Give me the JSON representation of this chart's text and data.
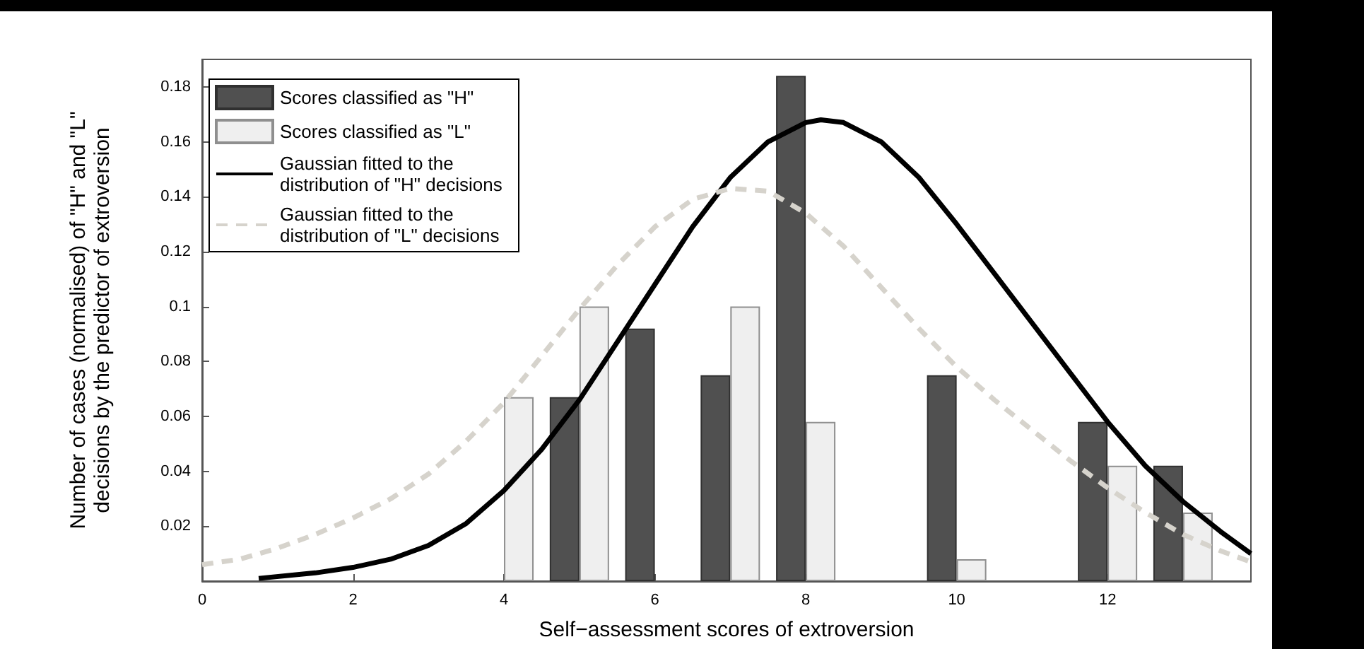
{
  "chart_data": {
    "type": "bar",
    "xlabel": "Self−assessment scores of extroversion",
    "ylabel": "Number of cases (normalised) of \"H\" and \"L\" decisions by the predictor of extroversion",
    "xlim": [
      0,
      13.9
    ],
    "xticks": [
      0,
      2,
      4,
      6,
      8,
      10,
      12
    ],
    "ylim": [
      0,
      0.19
    ],
    "yticks": [
      0.02,
      0.04,
      0.06,
      0.08,
      0.1,
      0.12,
      0.14,
      0.16,
      0.18
    ],
    "grid": false,
    "legend": "top left",
    "marker": "none",
    "series": [
      {
        "name": "Scores classified as \"H\"",
        "color": "#505050",
        "x": [
          5,
          6,
          7,
          8,
          10,
          12,
          13
        ],
        "values": [
          0.067,
          0.092,
          0.075,
          0.184,
          0.075,
          0.058,
          0.042
        ]
      },
      {
        "name": "Scores classified as \"L\"",
        "color": "#efefef",
        "x": [
          4,
          5,
          7,
          8,
          10,
          12,
          13
        ],
        "values": [
          0.067,
          0.1,
          0.1,
          0.058,
          0.008,
          0.042,
          0.025
        ]
      },
      {
        "name": "Gaussian fitted to the distribution of \"H\" decisions",
        "type": "line",
        "color": "#000000",
        "line_style": "solid",
        "x": [
          0.75,
          1.5,
          2,
          2.5,
          3,
          3.5,
          4,
          4.5,
          5,
          5.5,
          6,
          6.5,
          7,
          7.5,
          8,
          8.2,
          8.5,
          9,
          9.5,
          10,
          10.5,
          11,
          11.5,
          12,
          12.5,
          13,
          13.5,
          13.9
        ],
        "values": [
          0.001,
          0.003,
          0.005,
          0.008,
          0.013,
          0.021,
          0.033,
          0.048,
          0.066,
          0.087,
          0.108,
          0.129,
          0.147,
          0.16,
          0.167,
          0.168,
          0.167,
          0.16,
          0.147,
          0.13,
          0.112,
          0.094,
          0.076,
          0.058,
          0.042,
          0.029,
          0.018,
          0.01
        ]
      },
      {
        "name": "Gaussian fitted to the distribution of \"L\" decisions",
        "type": "line",
        "color": "#d6d3cc",
        "line_style": "dashed",
        "x": [
          0,
          0.5,
          1,
          1.5,
          2,
          2.5,
          3,
          3.5,
          4,
          4.5,
          5,
          5.5,
          6,
          6.5,
          7,
          7.5,
          8,
          8.5,
          9,
          9.5,
          10,
          10.5,
          11,
          11.5,
          12,
          12.5,
          13,
          13.5,
          13.9
        ],
        "values": [
          0.006,
          0.008,
          0.012,
          0.017,
          0.023,
          0.03,
          0.039,
          0.051,
          0.065,
          0.082,
          0.099,
          0.115,
          0.129,
          0.139,
          0.143,
          0.142,
          0.134,
          0.122,
          0.107,
          0.092,
          0.078,
          0.066,
          0.055,
          0.044,
          0.034,
          0.025,
          0.017,
          0.011,
          0.007
        ]
      }
    ]
  }
}
